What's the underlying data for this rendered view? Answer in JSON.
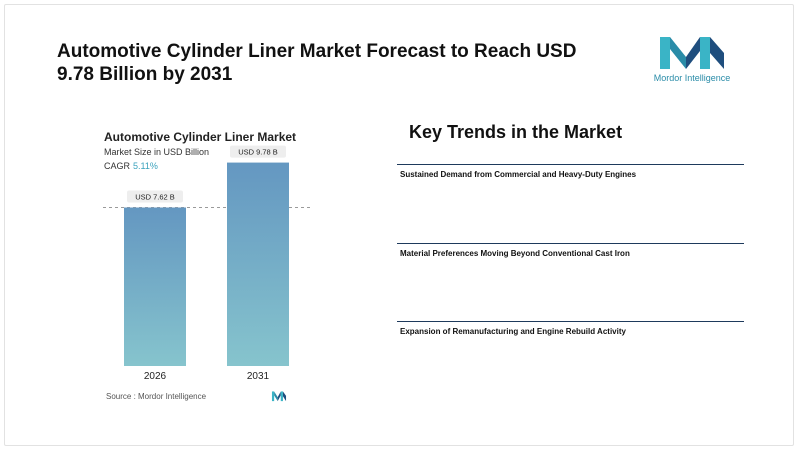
{
  "header": {
    "title": "Automotive Cylinder Liner Market Forecast to Reach USD 9.78 Billion by 2031"
  },
  "brand": {
    "name": "Mordor Intelligence",
    "logo_icon": "mordor-intelligence-logo-icon",
    "colors": {
      "teal": "#3ab4c6",
      "navy": "#1f4e7e"
    }
  },
  "chart_header": {
    "title": "Automotive Cylinder Liner Market",
    "subtitle": "Market Size in USD Billion",
    "cagr_label": "CAGR",
    "cagr_value": "5.11%"
  },
  "chart_data": {
    "type": "bar",
    "title": "Automotive Cylinder Liner Market",
    "ylabel": "Market Size in USD Billion",
    "categories": [
      "2026",
      "2031"
    ],
    "values": [
      7.62,
      9.78
    ],
    "data_labels": [
      "USD 7.62 B",
      "USD 9.78 B"
    ],
    "ylim": [
      0,
      10
    ],
    "grid": false,
    "reference_line": 7.62,
    "bar_gradient": [
      "#6497c1",
      "#86c4cd"
    ]
  },
  "source": {
    "text": "Source : Mordor Intelligence"
  },
  "key_trends": {
    "title": "Key Trends in the Market",
    "items": [
      {
        "label": "Sustained Demand from Commercial and Heavy-Duty Engines"
      },
      {
        "label": "Material Preferences Moving Beyond Conventional Cast Iron"
      },
      {
        "label": "Expansion of Remanufacturing and Engine Rebuild Activity"
      }
    ]
  }
}
